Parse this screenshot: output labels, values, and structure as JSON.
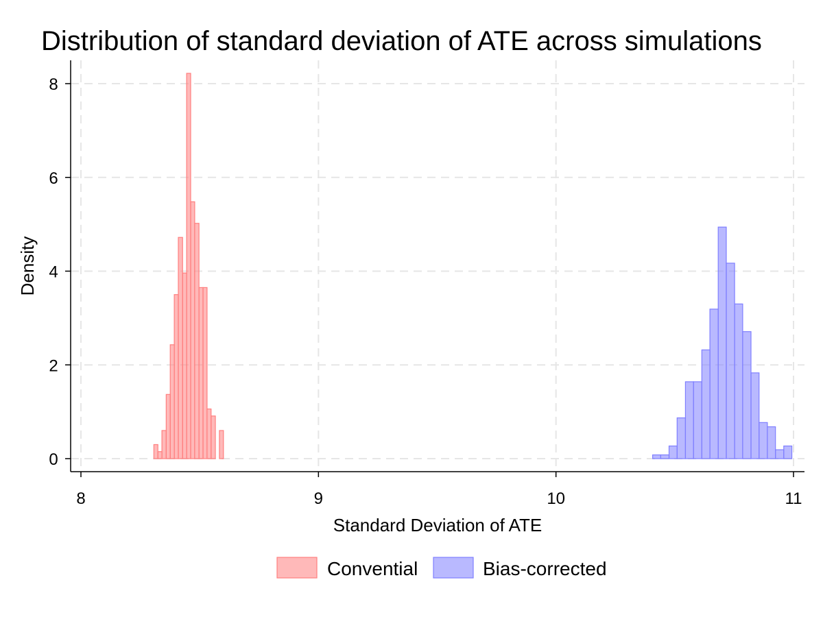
{
  "chart_data": {
    "type": "histogram",
    "title": "Distribution of standard deviation of ATE across simulations",
    "xlabel": "Standard Deviation of ATE",
    "ylabel": "Density",
    "xlim": [
      7.95,
      11.05
    ],
    "ylim": [
      0,
      8.6
    ],
    "xticks": [
      8,
      9,
      10,
      11
    ],
    "yticks": [
      0,
      2,
      4,
      6,
      8
    ],
    "grid": true,
    "legend_position": "bottom",
    "series": [
      {
        "name": "Convential",
        "color": "#ff7f7f",
        "bins": [
          {
            "x0": 8.307,
            "x1": 8.324,
            "density": 0.3
          },
          {
            "x0": 8.324,
            "x1": 8.341,
            "density": 0.15
          },
          {
            "x0": 8.341,
            "x1": 8.359,
            "density": 0.6
          },
          {
            "x0": 8.359,
            "x1": 8.376,
            "density": 1.37
          },
          {
            "x0": 8.376,
            "x1": 8.393,
            "density": 2.43
          },
          {
            "x0": 8.393,
            "x1": 8.41,
            "density": 3.5
          },
          {
            "x0": 8.41,
            "x1": 8.428,
            "density": 4.72
          },
          {
            "x0": 8.428,
            "x1": 8.445,
            "density": 3.96
          },
          {
            "x0": 8.445,
            "x1": 8.462,
            "density": 8.22
          },
          {
            "x0": 8.462,
            "x1": 8.479,
            "density": 5.48
          },
          {
            "x0": 8.479,
            "x1": 8.497,
            "density": 5.02
          },
          {
            "x0": 8.497,
            "x1": 8.514,
            "density": 3.65
          },
          {
            "x0": 8.514,
            "x1": 8.531,
            "density": 3.65
          },
          {
            "x0": 8.531,
            "x1": 8.548,
            "density": 1.06
          },
          {
            "x0": 8.548,
            "x1": 8.566,
            "density": 0.91
          },
          {
            "x0": 8.566,
            "x1": 8.583,
            "density": 0.0
          },
          {
            "x0": 8.583,
            "x1": 8.6,
            "density": 0.6
          }
        ]
      },
      {
        "name": "Bias-corrected",
        "color": "#7f7fff",
        "bins": [
          {
            "x0": 10.407,
            "x1": 10.441,
            "density": 0.08
          },
          {
            "x0": 10.441,
            "x1": 10.476,
            "density": 0.08
          },
          {
            "x0": 10.476,
            "x1": 10.51,
            "density": 0.27
          },
          {
            "x0": 10.51,
            "x1": 10.545,
            "density": 0.87
          },
          {
            "x0": 10.545,
            "x1": 10.579,
            "density": 1.64
          },
          {
            "x0": 10.579,
            "x1": 10.614,
            "density": 1.64
          },
          {
            "x0": 10.614,
            "x1": 10.648,
            "density": 2.32
          },
          {
            "x0": 10.648,
            "x1": 10.683,
            "density": 3.19
          },
          {
            "x0": 10.683,
            "x1": 10.717,
            "density": 4.94
          },
          {
            "x0": 10.717,
            "x1": 10.752,
            "density": 4.17
          },
          {
            "x0": 10.752,
            "x1": 10.786,
            "density": 3.3
          },
          {
            "x0": 10.786,
            "x1": 10.821,
            "density": 2.71
          },
          {
            "x0": 10.821,
            "x1": 10.855,
            "density": 1.83
          },
          {
            "x0": 10.855,
            "x1": 10.89,
            "density": 0.77
          },
          {
            "x0": 10.89,
            "x1": 10.924,
            "density": 0.68
          },
          {
            "x0": 10.924,
            "x1": 10.959,
            "density": 0.19
          },
          {
            "x0": 10.959,
            "x1": 10.993,
            "density": 0.27
          }
        ]
      }
    ]
  }
}
